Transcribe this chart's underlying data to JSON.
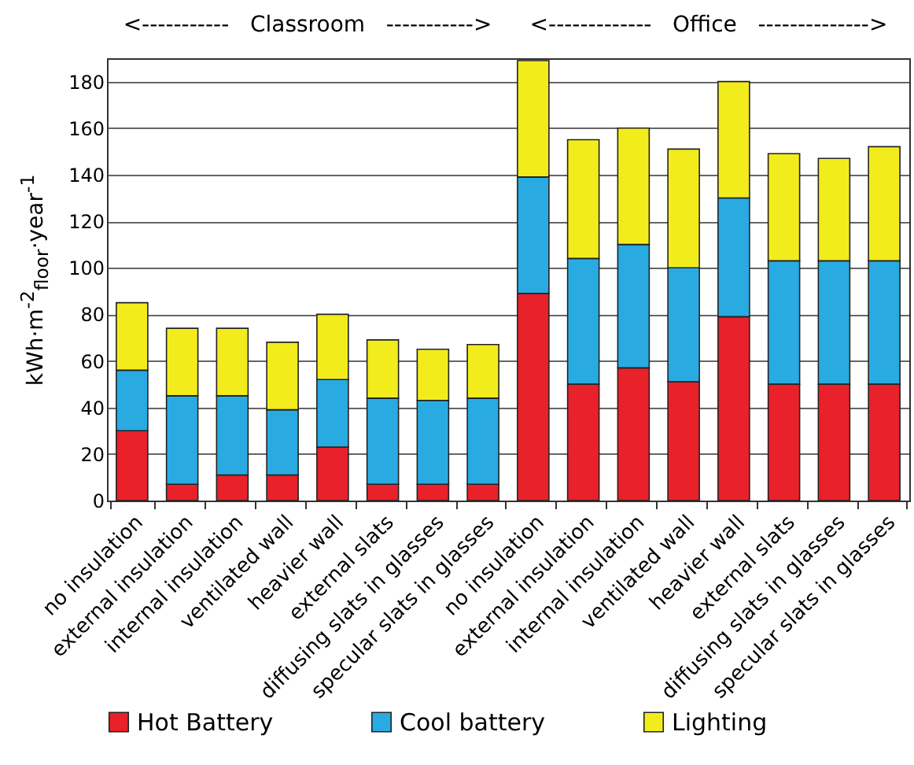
{
  "chart_data": {
    "type": "bar",
    "stacked": true,
    "ylabel": "kWh·m$^{-2}$$_{floor}$·year$^{-1}$",
    "annotations": [
      "<-----------   Classroom   ----------->",
      "<-------------   Office   -------------->"
    ],
    "categories": [
      "no insulation",
      "external insulation",
      "internal insulation",
      "ventilated wall",
      "heavier wall",
      "external slats",
      "diffusing slats in glasses",
      "specular slats in glasses",
      "no insulation",
      "external insulation",
      "internal insulation",
      "ventilated wall",
      "heavier wall",
      "external slats",
      "diffusing slats in glasses",
      "specular slats in glasses"
    ],
    "series": [
      {
        "name": "Hot Battery",
        "color": "#e8212a",
        "values": [
          30,
          7,
          11,
          11,
          23,
          7,
          7,
          7,
          89,
          50,
          57,
          51,
          79,
          50,
          50,
          50
        ]
      },
      {
        "name": "Cool battery",
        "color": "#29abe2",
        "values": [
          26,
          38,
          34,
          28,
          29,
          37,
          36,
          37,
          50,
          54,
          53,
          49,
          51,
          53,
          53,
          53
        ]
      },
      {
        "name": "Lighting",
        "color": "#f2ec1c",
        "values": [
          29,
          29,
          29,
          29,
          28,
          25,
          22,
          23,
          50,
          51,
          50,
          51,
          50,
          46,
          44,
          49
        ]
      }
    ],
    "ylim": [
      0,
      190
    ],
    "yticks": [
      0,
      20,
      40,
      60,
      80,
      100,
      120,
      140,
      160,
      180
    ],
    "grid": "y",
    "legend": "bottom"
  }
}
